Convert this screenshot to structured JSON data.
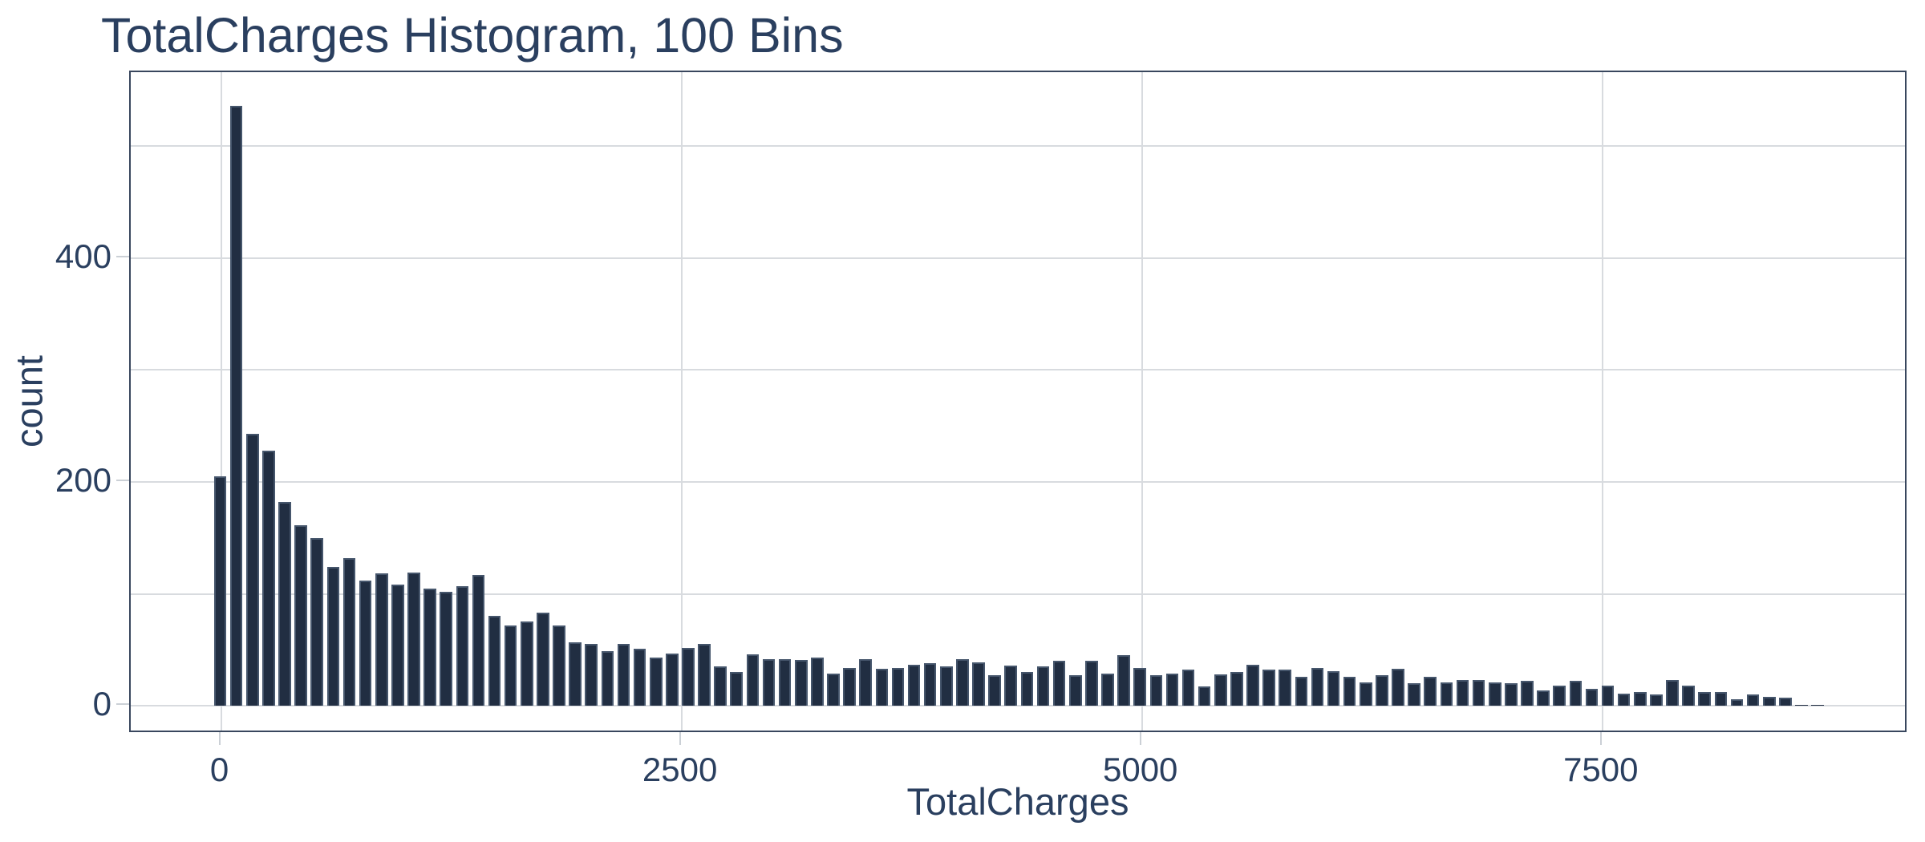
{
  "title": "TotalCharges Histogram, 100 Bins",
  "chart_data": {
    "type": "bar",
    "subtype": "histogram",
    "title": "TotalCharges Histogram, 100 Bins",
    "xlabel": "TotalCharges",
    "ylabel": "count",
    "bin_start": -48,
    "bin_width": 87.6,
    "num_bins": 100,
    "counts": [
      205,
      536,
      243,
      228,
      182,
      161,
      150,
      124,
      132,
      112,
      118,
      108,
      119,
      105,
      102,
      107,
      117,
      80,
      72,
      75,
      83,
      72,
      57,
      55,
      49,
      55,
      51,
      43,
      47,
      52,
      55,
      35,
      30,
      46,
      42,
      42,
      41,
      43,
      29,
      34,
      42,
      33,
      34,
      37,
      38,
      35,
      42,
      39,
      27,
      36,
      30,
      35,
      40,
      27,
      40,
      29,
      45,
      34,
      27,
      29,
      32,
      17,
      28,
      30,
      37,
      32,
      32,
      26,
      34,
      31,
      26,
      21,
      27,
      33,
      20,
      26,
      21,
      23,
      23,
      21,
      20,
      22,
      14,
      18,
      22,
      15,
      18,
      11,
      12,
      10,
      23,
      18,
      12,
      12,
      6,
      10,
      8,
      7,
      1,
      1
    ],
    "xlim": [
      -490,
      9160
    ],
    "ylim": [
      -25,
      566
    ],
    "x_gridlines": [
      0,
      2500,
      5000,
      7500
    ],
    "y_gridlines": [
      0,
      100,
      200,
      300,
      400,
      500
    ],
    "x_ticks": [
      {
        "value": 0,
        "label": "0"
      },
      {
        "value": 2500,
        "label": "2500"
      },
      {
        "value": 5000,
        "label": "5000"
      },
      {
        "value": 7500,
        "label": "7500"
      }
    ],
    "y_ticks": [
      {
        "value": 0,
        "label": "0"
      },
      {
        "value": 200,
        "label": "200"
      },
      {
        "value": 400,
        "label": "400"
      }
    ],
    "grid": true,
    "legend": "none",
    "bar_width_fraction": 0.78,
    "colors": {
      "background": "#ffffff",
      "bar_fill": "#212e42",
      "bar_border": "#46566c",
      "grid": "#d8dbdf",
      "frame": "#39475e",
      "tick": "#cbd0d6",
      "text": "#2a3f5f"
    }
  }
}
